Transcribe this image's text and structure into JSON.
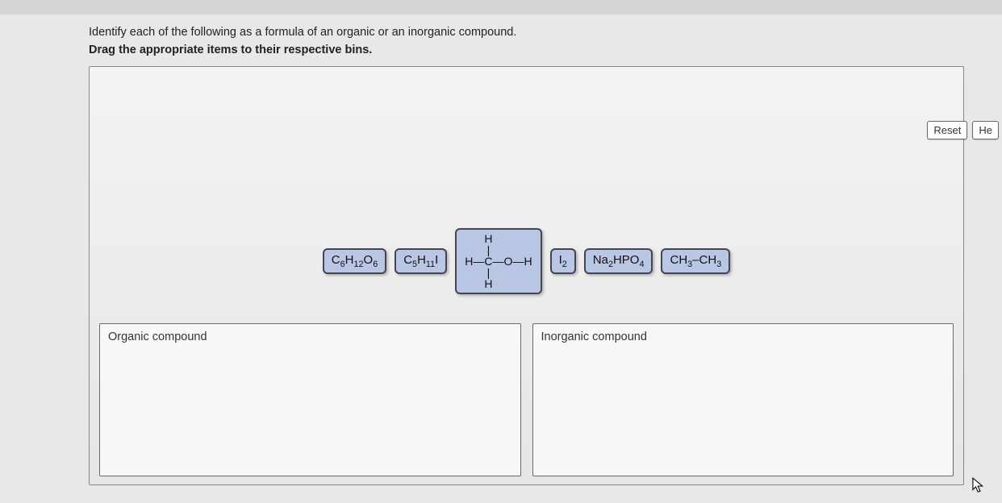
{
  "instruction_line1": "Identify each of the following as a formula of an organic or an inorganic compound.",
  "instruction_line2": "Drag the appropriate items to their respective bins.",
  "buttons": {
    "reset": "Reset",
    "help": "He"
  },
  "tiles": {
    "t1_html": "C<sub>6</sub>H<sub>12</sub>O<sub>6</sub>",
    "t2_html": "C<sub>5</sub>H<sub>11</sub>I",
    "methanol": {
      "top": "H",
      "vbar1": "|",
      "left": "H",
      "hb1": "—",
      "center": "C",
      "hb2": "—",
      "o": "O",
      "hb3": "—",
      "right": "H",
      "vbar2": "|",
      "bottom": "H"
    },
    "t4_html": "I<sub>2</sub>",
    "t5_html": "Na<sub>2</sub>HPO<sub>4</sub>",
    "t6_html": "CH<sub>3</sub>–CH<sub>3</sub>"
  },
  "bins": {
    "organic": "Organic compound",
    "inorganic": "Inorganic compound"
  },
  "colors": {
    "tile_bg": "#b9c6e4",
    "tile_border": "#44485a",
    "panel_border": "#888888",
    "bg": "#e8e8e8"
  }
}
